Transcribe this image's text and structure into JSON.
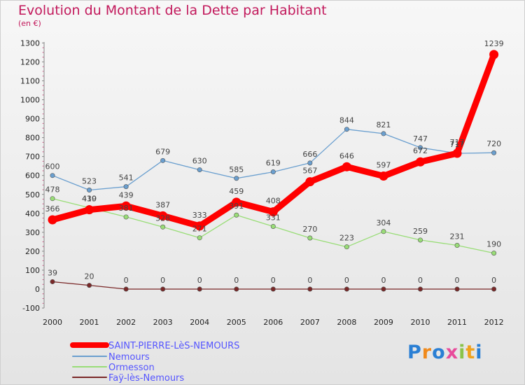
{
  "title": "Evolution du Montant de la Dette par Habitant",
  "subtitle": "(en €)",
  "logo": "Proxiti",
  "chart_data": {
    "type": "line",
    "title": "Evolution du Montant de la Dette par Habitant",
    "subtitle": "(en €)",
    "x": [
      "2000",
      "2001",
      "2002",
      "2003",
      "2004",
      "2005",
      "2006",
      "2007",
      "2008",
      "2009",
      "2010",
      "2011",
      "2012"
    ],
    "ylim": [
      -100,
      1300
    ],
    "yticks": [
      -100,
      0,
      100,
      200,
      300,
      400,
      500,
      600,
      700,
      800,
      900,
      1000,
      1100,
      1200,
      1300
    ],
    "grid": false,
    "legend_position": "bottom-left",
    "series": [
      {
        "name": "SAINT-PIERRE-LèS-NEMOURS",
        "color": "#ff0000",
        "label_color": "#5555ff",
        "values": [
          366,
          419,
          439,
          387,
          333,
          459,
          408,
          567,
          646,
          597,
          672,
          717,
          1239
        ]
      },
      {
        "name": "Nemours",
        "color": "#6a9fcf",
        "label_color": "#5555ff",
        "values": [
          600,
          523,
          541,
          679,
          630,
          585,
          619,
          666,
          844,
          821,
          747,
          717,
          720
        ]
      },
      {
        "name": "Ormesson",
        "color": "#99dd77",
        "label_color": "#5555ff",
        "values": [
          478,
          430,
          381,
          328,
          271,
          391,
          331,
          270,
          223,
          304,
          259,
          231,
          190
        ]
      },
      {
        "name": "Faÿ-lès-Nemours",
        "color": "#7a2828",
        "label_color": "#5555ff",
        "values": [
          39,
          20,
          0,
          0,
          0,
          0,
          0,
          0,
          0,
          0,
          0,
          0,
          0
        ]
      }
    ]
  }
}
